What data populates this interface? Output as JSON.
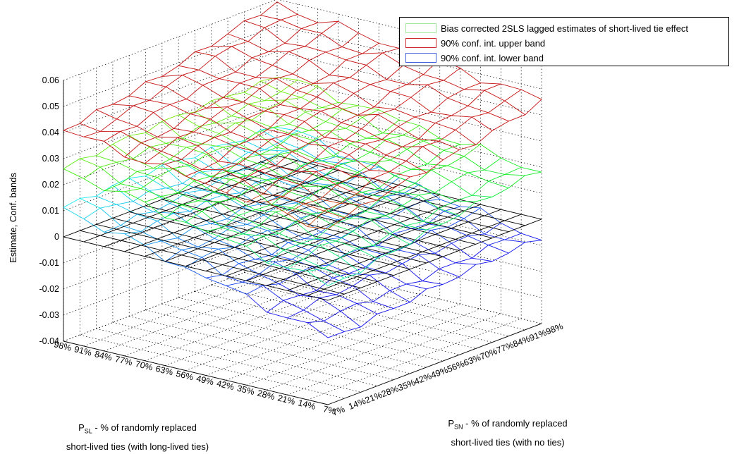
{
  "chart_data": {
    "type": "surface",
    "legend_position": "top-right",
    "grid": true,
    "zlabel": "Estimate, Conf. bands",
    "zlim": [
      -0.04,
      0.06
    ],
    "z_ticks": [
      "0.06",
      "0.05",
      "0.04",
      "0.03",
      "0.02",
      "0.01",
      "0",
      "-0.01",
      "-0.02",
      "-0.03",
      "-0.04"
    ],
    "x_axis": {
      "var": "P",
      "sub": "SL",
      "label_rest": " - % of randomly replaced",
      "label_line2": "short-lived ties (with long-lived ties)",
      "ticks": [
        "98%",
        "91%",
        "84%",
        "77%",
        "70%",
        "63%",
        "56%",
        "49%",
        "42%",
        "35%",
        "28%",
        "21%",
        "14%",
        "7%"
      ]
    },
    "y_axis": {
      "var": "P",
      "sub": "SN",
      "label_rest": " - % of randomly replaced",
      "label_line2": "short-lived ties (with no ties)",
      "ticks": [
        "7%",
        "14%",
        "21%",
        "28%",
        "35%",
        "42%",
        "49%",
        "56%",
        "63%",
        "70%",
        "77%",
        "84%",
        "91%",
        "98%"
      ]
    },
    "series": [
      {
        "name": "Bias corrected 2SLS lagged estimates of short-lived tie effect",
        "color": "#9ee89a",
        "corners": {
          "near_left": 0.026,
          "near_right": 0.006,
          "far_left": 0.031,
          "far_right": 0.018
        }
      },
      {
        "name": "90% conf. int. upper band",
        "color": "#cc2a2a",
        "corners": {
          "near_left": 0.041,
          "near_right": 0.027,
          "far_left": 0.058,
          "far_right": 0.046
        }
      },
      {
        "name": "90% conf. int. lower band",
        "color": "#3d5fd9",
        "corners": {
          "near_left": 0.011,
          "near_right": -0.014,
          "far_left": 0.012,
          "far_right": -0.008
        }
      }
    ],
    "reference_plane": {
      "z": 0,
      "color": "#000000"
    }
  }
}
